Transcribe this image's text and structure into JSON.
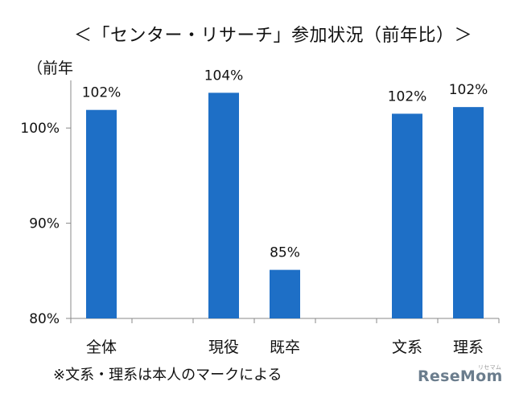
{
  "title": "＜「センター・リサーチ」参加状況（前年比）＞",
  "note": "※文系・理系は本人のマークによる",
  "logo": "ReseMom",
  "logo_sub": "リセマム",
  "colors": {
    "bar": "#1e6fc6",
    "axis": "#888888",
    "text": "#111111"
  },
  "chart_data": {
    "type": "bar",
    "title": "＜「センター・リサーチ」参加状況（前年比）＞",
    "ylabel": "（前年",
    "xlabel": "",
    "ylim": [
      80,
      105
    ],
    "yticks": [
      80,
      90,
      100
    ],
    "ytick_labels": [
      "80%",
      "90%",
      "100%"
    ],
    "grid": false,
    "categories": [
      "全体",
      "",
      "現役",
      "既卒",
      "",
      "文系",
      "理系"
    ],
    "values": [
      102,
      null,
      104,
      85,
      null,
      102,
      102
    ],
    "value_labels": [
      "102%",
      "",
      "104%",
      "85%",
      "",
      "102%",
      "102%"
    ],
    "bar_heights": [
      101.9,
      null,
      103.7,
      85.1,
      null,
      101.5,
      102.2
    ]
  }
}
